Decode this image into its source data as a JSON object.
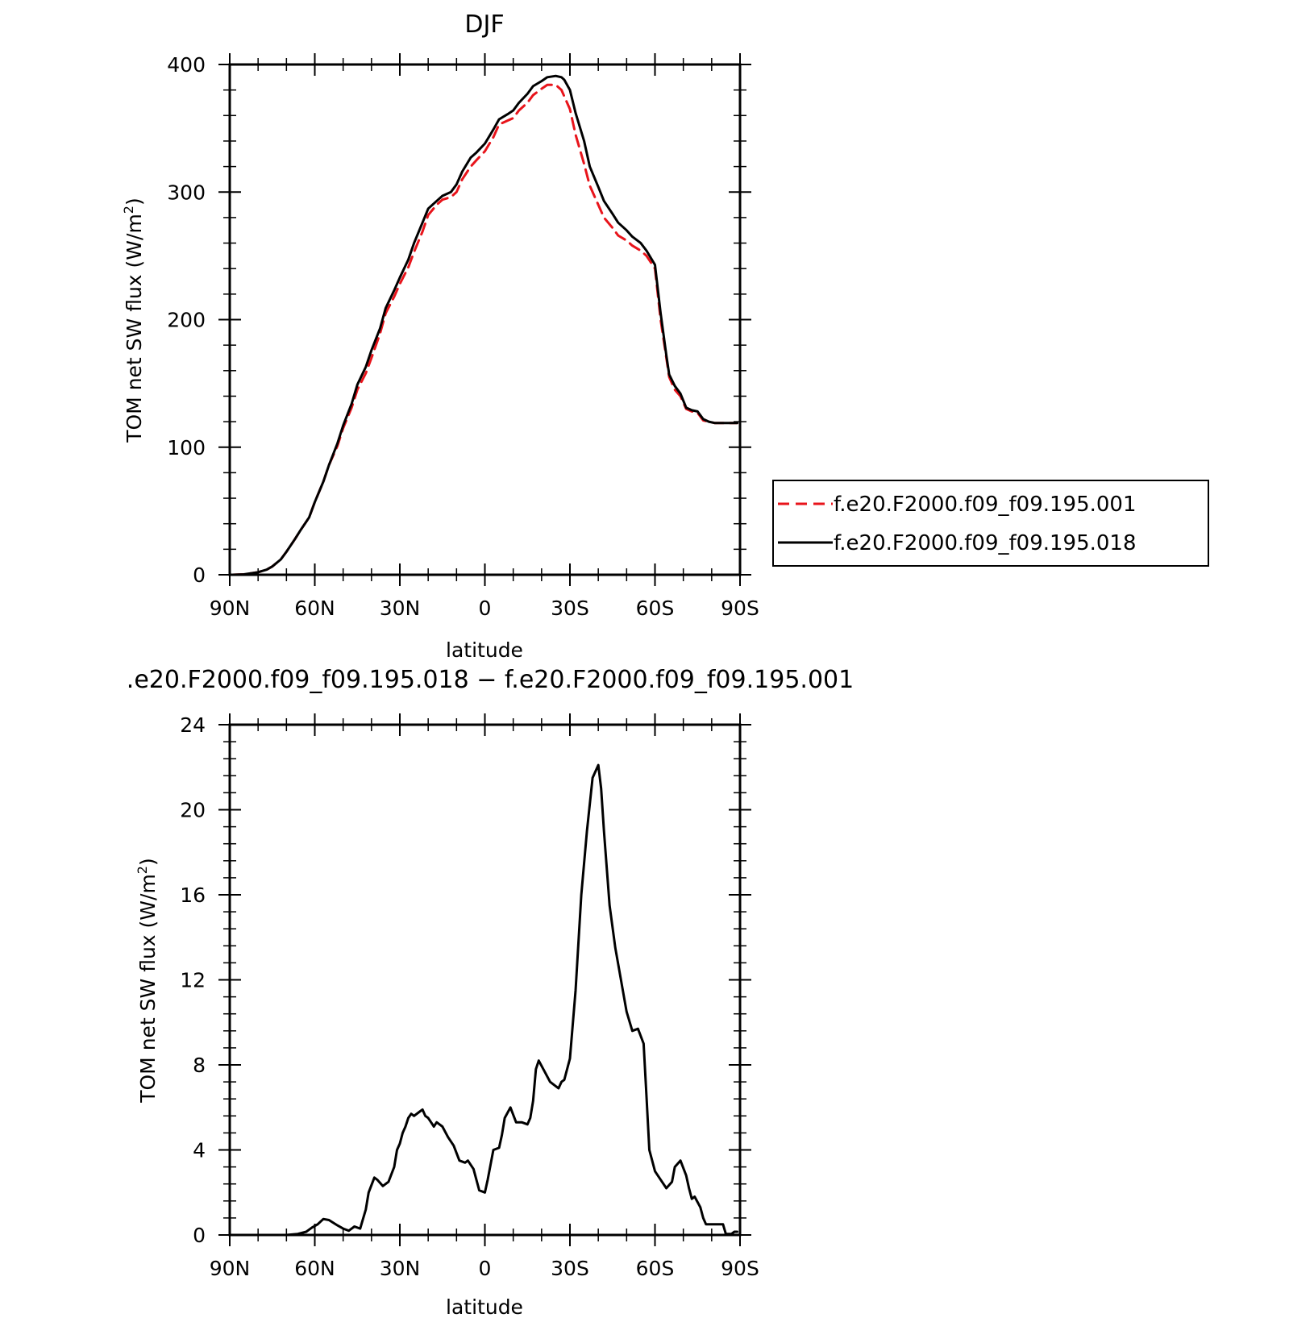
{
  "colors": {
    "control": "#e8141b",
    "experiment": "#000000",
    "difference": "#000000"
  },
  "chart_data": [
    {
      "type": "line",
      "title": "DJF",
      "xlabel": "latitude",
      "ylabel": "TOM net SW flux (W/m²)",
      "ylabel_main": "TOM net SW flux (W/m",
      "ylabel_sup": "2",
      "ylabel_close": ")",
      "xlim": [
        90,
        -90
      ],
      "ylim": [
        0,
        400
      ],
      "xticks": [
        90,
        60,
        30,
        0,
        -30,
        -60,
        -90
      ],
      "xtick_labels": [
        "90N",
        "60N",
        "30N",
        "0",
        "30S",
        "60S",
        "90S"
      ],
      "yticks": [
        0,
        100,
        200,
        300,
        400
      ],
      "ytick_labels": [
        "0",
        "100",
        "200",
        "300",
        "400"
      ],
      "grid": false,
      "legend_position": "right",
      "series": [
        {
          "name": "f.e20.F2000.f09_f09.195.001",
          "style": "dashed",
          "x": [
            89,
            85,
            80,
            77,
            75,
            72,
            70,
            67,
            65,
            62,
            60,
            57,
            55,
            52,
            50,
            47,
            45,
            42,
            40,
            37,
            35,
            32,
            30,
            27,
            25,
            22,
            20,
            17,
            15,
            12,
            10,
            8,
            5,
            3,
            0,
            -3,
            -5,
            -8,
            -10,
            -12,
            -15,
            -17,
            -20,
            -22,
            -25,
            -27,
            -28,
            -30,
            -32,
            -35,
            -37,
            -40,
            -42,
            -45,
            -47,
            -50,
            -52,
            -55,
            -57,
            -60,
            -62,
            -64,
            -65,
            -67,
            -69,
            -71,
            -73,
            -75,
            -77,
            -79,
            -81,
            -83,
            -85,
            -87,
            -89
          ],
          "values": [
            0,
            0.3,
            2,
            4,
            6.5,
            12,
            18,
            28,
            35,
            45,
            57,
            73,
            86,
            101,
            115,
            131,
            145,
            158,
            170,
            189,
            205,
            218,
            228,
            241,
            253,
            269,
            282,
            290,
            294,
            296,
            300,
            310,
            320,
            325,
            332,
            343,
            353,
            356,
            358,
            364,
            370,
            376,
            381,
            384,
            384,
            380,
            375,
            365,
            345,
            322,
            305,
            290,
            280,
            272,
            266,
            262,
            258,
            254,
            250,
            240,
            200,
            170,
            155,
            145,
            140,
            130,
            128,
            127,
            121,
            120,
            119,
            119,
            119,
            119,
            119
          ]
        },
        {
          "name": "f.e20.F2000.f09_f09.195.018",
          "style": "solid",
          "x": [
            89,
            85,
            80,
            77,
            75,
            72,
            70,
            67,
            65,
            62,
            60,
            57,
            55,
            52,
            50,
            47,
            45,
            42,
            40,
            37,
            35,
            32,
            30,
            27,
            25,
            22,
            20,
            17,
            15,
            12,
            10,
            8,
            5,
            3,
            0,
            -3,
            -5,
            -8,
            -10,
            -12,
            -15,
            -17,
            -20,
            -22,
            -25,
            -27,
            -28,
            -30,
            -32,
            -35,
            -37,
            -40,
            -42,
            -45,
            -47,
            -50,
            -52,
            -55,
            -57,
            -60,
            -62,
            -64,
            -65,
            -67,
            -69,
            -71,
            -73,
            -75,
            -77,
            -79,
            -81,
            -83,
            -85,
            -87,
            -89
          ],
          "values": [
            0,
            0.3,
            2,
            4,
            6.5,
            12,
            18,
            28,
            35,
            45,
            57,
            73,
            86,
            103,
            117,
            134,
            149,
            163,
            176,
            193,
            209,
            223,
            233,
            247,
            260,
            276,
            287,
            293,
            297,
            300,
            306,
            316,
            327,
            331,
            338,
            349,
            357,
            361,
            364,
            370,
            377,
            383,
            387,
            390,
            391,
            390,
            388,
            380,
            362,
            340,
            320,
            304,
            293,
            283,
            276,
            270,
            265,
            260,
            254,
            243,
            205,
            172,
            157,
            148,
            142,
            131,
            129,
            128,
            122,
            120,
            119,
            119,
            119,
            119,
            119
          ]
        }
      ]
    },
    {
      "type": "line",
      "title": ".e20.F2000.f09_f09.195.018 − f.e20.F2000.f09_f09.195.001",
      "xlabel": "latitude",
      "ylabel": "TOM net SW flux (W/m²)",
      "ylabel_main": "TOM net SW flux (W/m",
      "ylabel_sup": "2",
      "ylabel_close": ")",
      "xlim": [
        90,
        -90
      ],
      "ylim": [
        0,
        24
      ],
      "xticks": [
        90,
        60,
        30,
        0,
        -30,
        -60,
        -90
      ],
      "xtick_labels": [
        "90N",
        "60N",
        "30N",
        "0",
        "30S",
        "60S",
        "90S"
      ],
      "yticks": [
        0,
        4,
        8,
        12,
        16,
        20,
        24
      ],
      "ytick_labels": [
        "0",
        "4",
        "8",
        "12",
        "16",
        "20",
        "24"
      ],
      "grid": false,
      "series": [
        {
          "style": "solid",
          "x": [
            90,
            80,
            70,
            66,
            63,
            61,
            59,
            57,
            55,
            52,
            50,
            48,
            46,
            44,
            42,
            41,
            39,
            38,
            36,
            34,
            32,
            31,
            30,
            29,
            28,
            27,
            26,
            25,
            23,
            22,
            21,
            20,
            19,
            18,
            17,
            15,
            13,
            11,
            9,
            7,
            6,
            4,
            2,
            0,
            -1,
            -3,
            -5,
            -6,
            -7,
            -9,
            -11,
            -13,
            -15,
            -16,
            -17,
            -18,
            -19,
            -21,
            -23,
            -25,
            -26,
            -27,
            -28,
            -30,
            -32,
            -34,
            -36,
            -38,
            -40,
            -41,
            -42,
            -44,
            -46,
            -48,
            -50,
            -52,
            -54,
            -56,
            -57,
            -58,
            -60,
            -62,
            -64,
            -66,
            -67,
            -69,
            -71,
            -72,
            -73,
            -74,
            -76,
            -77,
            -78,
            -80,
            -82,
            -84,
            -85,
            -86,
            -87,
            -88,
            -89
          ],
          "values": [
            0,
            0,
            0,
            0.05,
            0.15,
            0.35,
            0.5,
            0.75,
            0.7,
            0.45,
            0.3,
            0.2,
            0.4,
            0.3,
            1.2,
            2,
            2.7,
            2.6,
            2.3,
            2.5,
            3.2,
            4.0,
            4.3,
            4.8,
            5.1,
            5.5,
            5.7,
            5.6,
            5.8,
            5.9,
            5.6,
            5.5,
            5.3,
            5.1,
            5.3,
            5.1,
            4.6,
            4.2,
            3.5,
            3.4,
            3.5,
            3.1,
            2.1,
            2.0,
            2.6,
            4.0,
            4.1,
            4.7,
            5.5,
            6.0,
            5.3,
            5.3,
            5.2,
            5.5,
            6.3,
            7.8,
            8.2,
            7.7,
            7.2,
            7.0,
            6.9,
            7.2,
            7.3,
            8.3,
            11.5,
            16.0,
            19.0,
            21.5,
            22.1,
            21.0,
            19.0,
            15.5,
            13.5,
            12.0,
            10.5,
            9.6,
            9.7,
            9.0,
            6.5,
            4.0,
            3.0,
            2.6,
            2.2,
            2.5,
            3.2,
            3.5,
            2.8,
            2.2,
            1.7,
            1.8,
            1.3,
            0.8,
            0.5,
            0.5,
            0.5,
            0.5,
            0.05,
            0.05,
            0.05,
            0.15,
            0.15
          ]
        }
      ]
    }
  ]
}
